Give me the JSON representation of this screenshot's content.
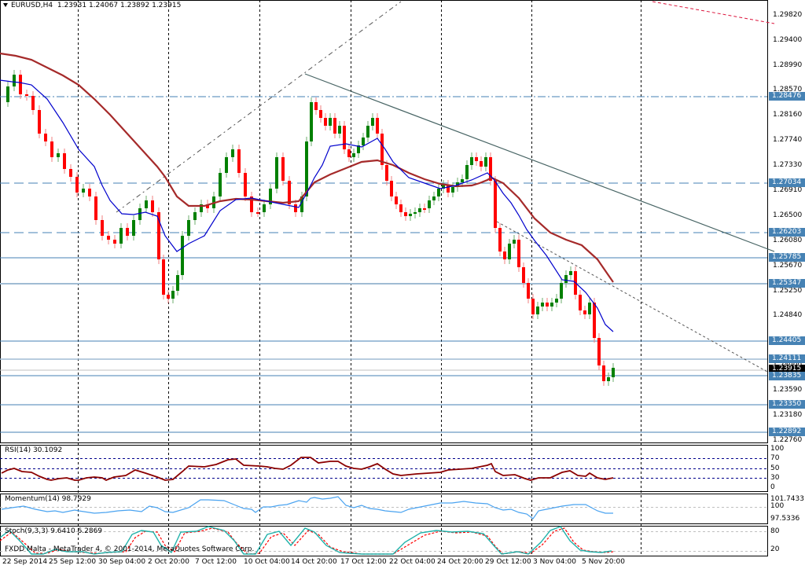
{
  "header": {
    "symbol": "EURUSD,H4",
    "ohlc": "1.23931 1.24067 1.23892 1.23915",
    "collapse_icon": "triangle-down-icon"
  },
  "price_axis": {
    "ticks": [
      "1.29820",
      "1.29400",
      "1.28990",
      "1.28570",
      "1.28160",
      "1.27740",
      "1.27330",
      "1.26910",
      "1.26500",
      "1.26080",
      "1.25670",
      "1.25250",
      "1.24840",
      "1.24420",
      "1.24000",
      "1.23590",
      "1.23180",
      "1.22760"
    ],
    "level_tags": [
      "1.28476",
      "1.27034",
      "1.26203",
      "1.25785",
      "1.25347",
      "1.24405",
      "1.24111",
      "1.23835",
      "1.23350",
      "1.22892"
    ],
    "current_price": "1.23915"
  },
  "indicators": {
    "rsi": {
      "label": "RSI(14) 30.1092",
      "scale": [
        "100",
        "70",
        "50",
        "30",
        "0"
      ]
    },
    "momentum": {
      "label": "Momentum(14) 98.7929",
      "scale": [
        "101.7433",
        "100",
        "97.5336"
      ]
    },
    "stoch": {
      "label": "Stoch(9,3,3) 9.6410 6.2869",
      "scale": [
        "80",
        "100",
        "20",
        "0"
      ]
    }
  },
  "copyright": "FXDD Malta - MetaTrader 4, © 2001-2014, MetaQuotes Software Corp.",
  "time_axis": [
    "22 Sep 2014",
    "25 Sep 12:00",
    "30 Sep 04:00",
    "2 Oct 20:00",
    "7 Oct 12:00",
    "10 Oct 04:00",
    "14 Oct 20:00",
    "17 Oct 12:00",
    "22 Oct 04:00",
    "24 Oct 20:00",
    "29 Oct 12:00",
    "3 Nov 04:00",
    "5 Nov 20:00"
  ],
  "colors": {
    "bull": "#008000",
    "bear": "#ff0000",
    "ma_fast": "#0000cd",
    "ma_slow": "#a52a2a",
    "level": "#4682b4",
    "rsi": "#8b0000",
    "momentum": "#4aa3f0",
    "stoch_main": "#20b2aa",
    "stoch_signal": "#ff0000"
  }
}
